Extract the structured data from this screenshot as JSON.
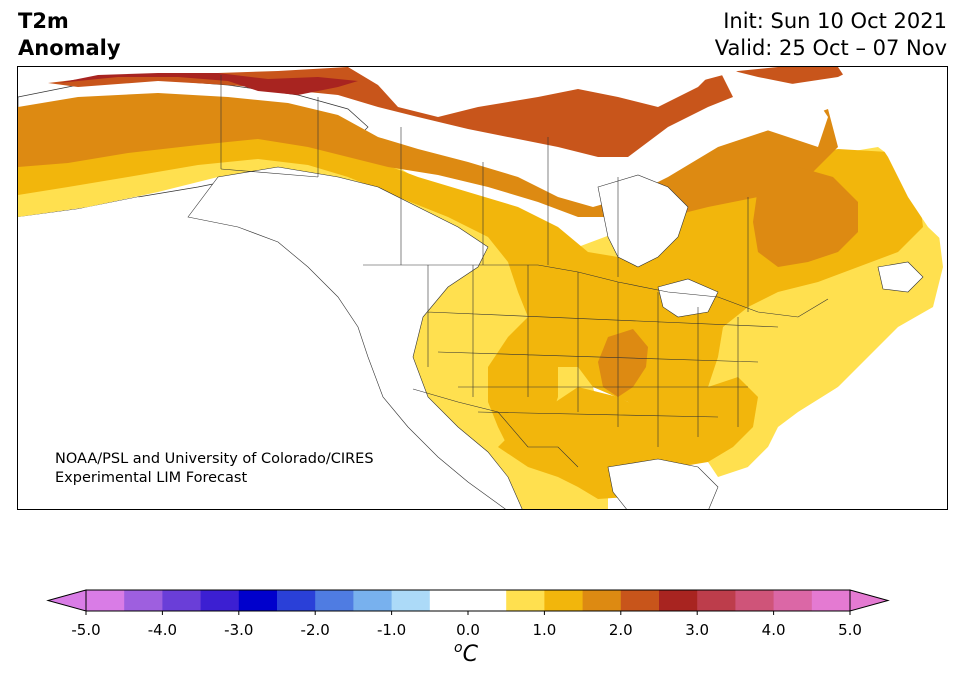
{
  "title": {
    "line1": "T2m",
    "line2": "Anomaly"
  },
  "dates": {
    "init": "Init: Sun 10 Oct 2021",
    "valid": "Valid: 25 Oct – 07 Nov"
  },
  "credit": {
    "line1": "NOAA/PSL and University of Colorado/CIRES",
    "line2": "Experimental LIM Forecast"
  },
  "colorbar": {
    "unit_degree": "o",
    "unit_letter": "C",
    "ticks": [
      "-5.0",
      "-4.0",
      "-3.0",
      "-2.0",
      "-1.0",
      "0.0",
      "1.0",
      "2.0",
      "3.0",
      "4.0",
      "5.0"
    ],
    "range": [
      -5.0,
      5.0
    ],
    "bins": [
      {
        "from": -5.0,
        "to": -4.5,
        "color": "#d97ce6"
      },
      {
        "from": -4.5,
        "to": -4.0,
        "color": "#9e5fdf"
      },
      {
        "from": -4.0,
        "to": -3.5,
        "color": "#6a3ed8"
      },
      {
        "from": -3.5,
        "to": -3.0,
        "color": "#3c1fd2"
      },
      {
        "from": -3.0,
        "to": -2.5,
        "color": "#0000cc"
      },
      {
        "from": -2.5,
        "to": -2.0,
        "color": "#2a40d8"
      },
      {
        "from": -2.0,
        "to": -1.5,
        "color": "#4f7ce2"
      },
      {
        "from": -1.5,
        "to": -1.0,
        "color": "#78b1ee"
      },
      {
        "from": -1.0,
        "to": -0.5,
        "color": "#acdaf8"
      },
      {
        "from": -0.5,
        "to": 0.5,
        "color": "#ffffff"
      },
      {
        "from": 0.5,
        "to": 1.0,
        "color": "#ffe04f"
      },
      {
        "from": 1.0,
        "to": 1.5,
        "color": "#f2b60c"
      },
      {
        "from": 1.5,
        "to": 2.0,
        "color": "#dd8a12"
      },
      {
        "from": 2.0,
        "to": 2.5,
        "color": "#c8551b"
      },
      {
        "from": 2.5,
        "to": 3.0,
        "color": "#a82420"
      },
      {
        "from": 3.0,
        "to": 3.5,
        "color": "#bd3d4b"
      },
      {
        "from": 3.5,
        "to": 4.0,
        "color": "#cf5479"
      },
      {
        "from": 4.0,
        "to": 4.5,
        "color": "#db67a6"
      },
      {
        "from": 4.5,
        "to": 5.0,
        "color": "#e47ad2"
      }
    ],
    "extend_low_color": "#d97ce6",
    "extend_high_color": "#e47ad2"
  },
  "map": {
    "region": "North America",
    "ocean_color": "#ffffff",
    "anomaly_colors": {
      "w1": "#ffe04f",
      "w2": "#f2b60c",
      "w3": "#dd8a12",
      "w4": "#c8551b",
      "w5": "#a82420"
    }
  }
}
